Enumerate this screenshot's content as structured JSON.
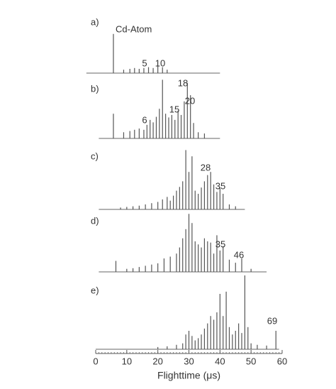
{
  "chart_data": [
    {
      "type": "stem",
      "label": "a)",
      "annotations": [
        "Cd-Atom",
        "5",
        "10"
      ],
      "xlim": [
        0,
        60
      ],
      "ylim": [
        0,
        100
      ],
      "x": [
        5.7,
        9,
        11,
        12.5,
        14,
        15.5,
        17,
        18.5,
        20,
        21.5,
        23
      ],
      "values": [
        92,
        8,
        10,
        12,
        10,
        12,
        14,
        12,
        16,
        14,
        8
      ]
    },
    {
      "type": "stem",
      "label": "b)",
      "annotations": [
        "6",
        "15",
        "18",
        "20"
      ],
      "xlim": [
        0,
        60
      ],
      "ylim": [
        0,
        100
      ],
      "x": [
        5.7,
        9,
        11,
        12.5,
        14,
        15.5,
        16.5,
        17.5,
        18.5,
        19.5,
        20.5,
        21.5,
        22.5,
        23.5,
        24.5,
        25.5,
        26.5,
        27.5,
        28.5,
        29.5,
        30.5,
        31.5,
        33,
        35
      ],
      "values": [
        40,
        10,
        12,
        14,
        16,
        14,
        22,
        30,
        26,
        35,
        48,
        95,
        40,
        34,
        38,
        30,
        45,
        38,
        60,
        90,
        70,
        25,
        10,
        8
      ]
    },
    {
      "type": "stem",
      "label": "c)",
      "annotations": [
        "28",
        "35"
      ],
      "xlim": [
        0,
        60
      ],
      "ylim": [
        0,
        100
      ],
      "x": [
        8,
        10,
        12,
        14,
        16,
        18,
        20,
        21.5,
        23,
        24,
        25,
        26,
        27,
        28,
        29,
        30,
        31,
        32,
        33,
        34,
        35,
        36,
        37,
        38,
        39,
        40,
        41,
        43,
        45
      ],
      "values": [
        3,
        4,
        5,
        6,
        8,
        10,
        12,
        16,
        20,
        14,
        22,
        30,
        36,
        45,
        95,
        60,
        85,
        30,
        25,
        35,
        45,
        55,
        60,
        40,
        28,
        35,
        25,
        8,
        5
      ]
    },
    {
      "type": "stem",
      "label": "d)",
      "annotations": [
        "35",
        "46"
      ],
      "xlim": [
        0,
        60
      ],
      "ylim": [
        0,
        100
      ],
      "x": [
        6.5,
        10,
        12,
        14,
        16,
        18,
        20,
        22,
        24,
        26,
        27,
        28,
        29,
        30,
        31,
        32,
        33,
        34,
        35,
        36,
        37,
        38,
        39,
        40,
        41,
        43,
        45,
        47,
        50
      ],
      "values": [
        18,
        5,
        6,
        8,
        10,
        12,
        14,
        22,
        25,
        30,
        40,
        55,
        70,
        95,
        80,
        50,
        45,
        40,
        55,
        50,
        48,
        30,
        60,
        35,
        42,
        20,
        15,
        22,
        5
      ]
    },
    {
      "type": "stem",
      "label": "e)",
      "annotations": [
        "69"
      ],
      "xlim": [
        0,
        60
      ],
      "ylim": [
        0,
        100
      ],
      "xticks": [
        0,
        10,
        20,
        30,
        40,
        50,
        60
      ],
      "xlabel": "Flighttime (μs)",
      "x": [
        20,
        23,
        26,
        28,
        29,
        30,
        31,
        32,
        33,
        34,
        35,
        36,
        37,
        38,
        39,
        40,
        41,
        42,
        43,
        44,
        45,
        46,
        47,
        48,
        49,
        50,
        52,
        55,
        58
      ],
      "values": [
        3,
        4,
        6,
        8,
        20,
        25,
        18,
        12,
        15,
        20,
        28,
        35,
        45,
        40,
        50,
        75,
        45,
        78,
        30,
        20,
        25,
        35,
        22,
        100,
        30,
        8,
        6,
        5,
        25
      ]
    }
  ]
}
